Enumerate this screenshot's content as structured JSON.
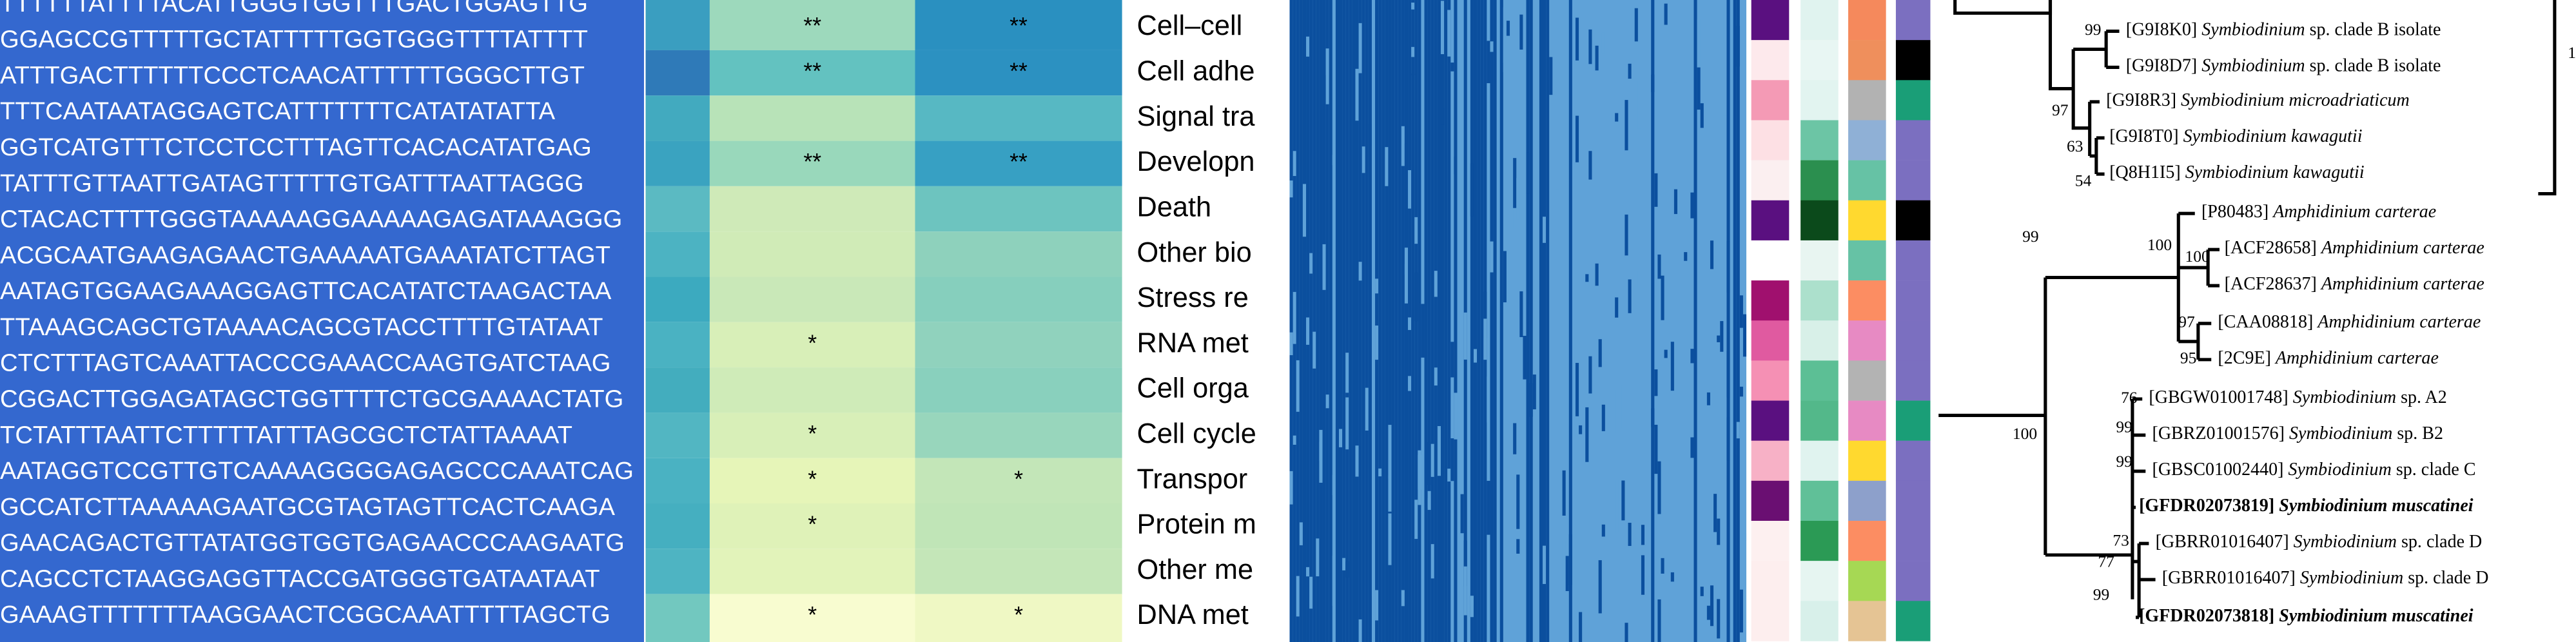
{
  "sequences": [
    "TTTTTTATTTTACATTGGGTGGTTTGACTGGAGTTG",
    "GGAGCCGTTTTTGCTATTTTTGGTGGGTTTTATTTT",
    "ATTTGACTTTTTTCCCTCAACATTTTTTGGGCTTGT",
    "TTTCAATAATAGGAGTCATTTTTTTCATATATATTA",
    "GGTCATGTTTCTCCTCCTTTAGTTCACACATATGAG",
    "TATTTGTTAATTGATAGTTTTTGTGATTTAATTAGGG",
    "CTACACTTTTGGGTAAAAAGGAAAAAGAGATAAAGGG",
    "ACGCAATGAAGAGAACTGAAAAATGAAATATCTTAGT",
    "AATAGTGGAAGAAAGGAGTTCACATATCTAAGACTAA",
    "TTAAAGCAGCTGTAAAACAGCGTACCTTTTGTATAAT",
    "CTCTTTAGTCAAATTACCCGAAACCAAGTGATCTAAG",
    "CGGACTTGGAGATAGCTGGTTTTCTGCGAAAACTATG",
    "TCTATTTAATTCTTTTTATTTAGCGCTCTATTAAAAT",
    "AATAGGTCCGTTGTCAAAAGGGGAGAGCCCAAATCAG",
    "GCCATCTTAAAAAGAATGCGTAGTAGTTCACTCAAGA",
    "GAACAGACTGTTATATGGTGGTGAGAACCCAAGAATG",
    "CAGCCTCTAAGGAGGTTACCGATGGGTGATAATAAT",
    "GAAAGTTTTTTTAAGGAACTCGGCAAATTTTTAGCTG"
  ],
  "heatmap": {
    "labels": [
      "Cell–cell",
      "Cell adhe",
      "Signal tra",
      "Developn",
      "Death",
      "Other bio",
      "Stress re",
      "RNA met",
      "Cell orga",
      "Cell cycle",
      "Transpor",
      "Protein m",
      "Other me",
      "DNA met"
    ],
    "stars": [
      [
        "**",
        "**"
      ],
      [
        "**",
        "**"
      ],
      [
        null,
        null
      ],
      [
        "**",
        "**"
      ],
      [
        null,
        null
      ],
      [
        null,
        null
      ],
      [
        null,
        null
      ],
      [
        "*",
        null
      ],
      [
        null,
        null
      ],
      [
        "*",
        null
      ],
      [
        "*",
        "*"
      ],
      [
        "*",
        null
      ],
      [
        null,
        null
      ],
      [
        "*",
        "*"
      ]
    ],
    "colors": [
      [
        "#3a9ec0",
        "#9dd9bc",
        "#2a90c0"
      ],
      [
        "#2f7ab8",
        "#63c2c0",
        "#2c91c1"
      ],
      [
        "#42aabf",
        "#b8e3b8",
        "#57b8c3"
      ],
      [
        "#3aa3c0",
        "#99d8bb",
        "#37a0c3"
      ],
      [
        "#5bbac2",
        "#cfeab8",
        "#6dc4bf"
      ],
      [
        "#4cb3c2",
        "#d0ebb7",
        "#8ed1bc"
      ],
      [
        "#3caabf",
        "#c9e8b8",
        "#86cfbd"
      ],
      [
        "#4ab2c2",
        "#d8efb8",
        "#90d2bd"
      ],
      [
        "#43adbe",
        "#cfebb8",
        "#89d0bd"
      ],
      [
        "#52b6c2",
        "#d8efb8",
        "#98d6bc"
      ],
      [
        "#4ab2c2",
        "#e6f5b8",
        "#c3e6b8"
      ],
      [
        "#45afc0",
        "#dff2b8",
        "#c0e5b7"
      ],
      [
        "#4eb4c2",
        "#e2f3ba",
        "#c4e6b8"
      ],
      [
        "#72c8bf",
        "#f8fcd0",
        "#eff8c4"
      ]
    ]
  },
  "tree": {
    "leaves": [
      {
        "accession": "[G9I8K0]",
        "species": "Symbiodinium",
        "suffix": "sp. clade B isolate"
      },
      {
        "accession": "[G9I8D7]",
        "species": "Symbiodinium",
        "suffix": "sp. clade B isolate"
      },
      {
        "accession": "[G9I8R3]",
        "species": "Symbiodinium microadriaticum"
      },
      {
        "accession": "[G9I8T0]",
        "species": "Symbiodinium kawagutii"
      },
      {
        "accession": "[Q8H1I5]",
        "species": "Symbiodinium kawagutii"
      },
      {
        "accession": "[P80483]",
        "species": "Amphidinium carterae"
      },
      {
        "accession": "[ACF28658]",
        "species": "Amphidinium carterae"
      },
      {
        "accession": "[ACF28637]",
        "species": "Amphidinium carterae"
      },
      {
        "accession": "[CAA08818]",
        "species": "Amphidinium carterae"
      },
      {
        "accession": "[2C9E]",
        "species": "Amphidinium carterae"
      },
      {
        "accession": "[GBGW01001748]",
        "species": "Symbiodinium",
        "suffix": "sp. A2"
      },
      {
        "accession": "[GBRZ01001576]",
        "species": "Symbiodinium",
        "suffix": "sp. B2"
      },
      {
        "accession": "[GBSC01002440]",
        "species": "Symbiodinium",
        "suffix": "sp. clade C"
      },
      {
        "accession": "[GFDR02073819]",
        "species": "Symbiodinium muscatinei",
        "bold": true
      },
      {
        "accession": "[GBRR01016407]",
        "species": "Symbiodinium",
        "suffix": "sp. clade D"
      },
      {
        "accession": "[GBRR01016407]",
        "species": "Symbiodinium",
        "suffix": "sp. clade D"
      },
      {
        "accession": "[GFDR02073818]",
        "species": "Symbiodinium muscatinei",
        "bold": true
      }
    ],
    "supports": [
      99,
      97,
      63,
      54,
      99,
      100,
      100,
      97,
      95,
      100,
      76,
      99,
      99,
      73,
      77,
      99
    ],
    "edge_label": "1"
  }
}
